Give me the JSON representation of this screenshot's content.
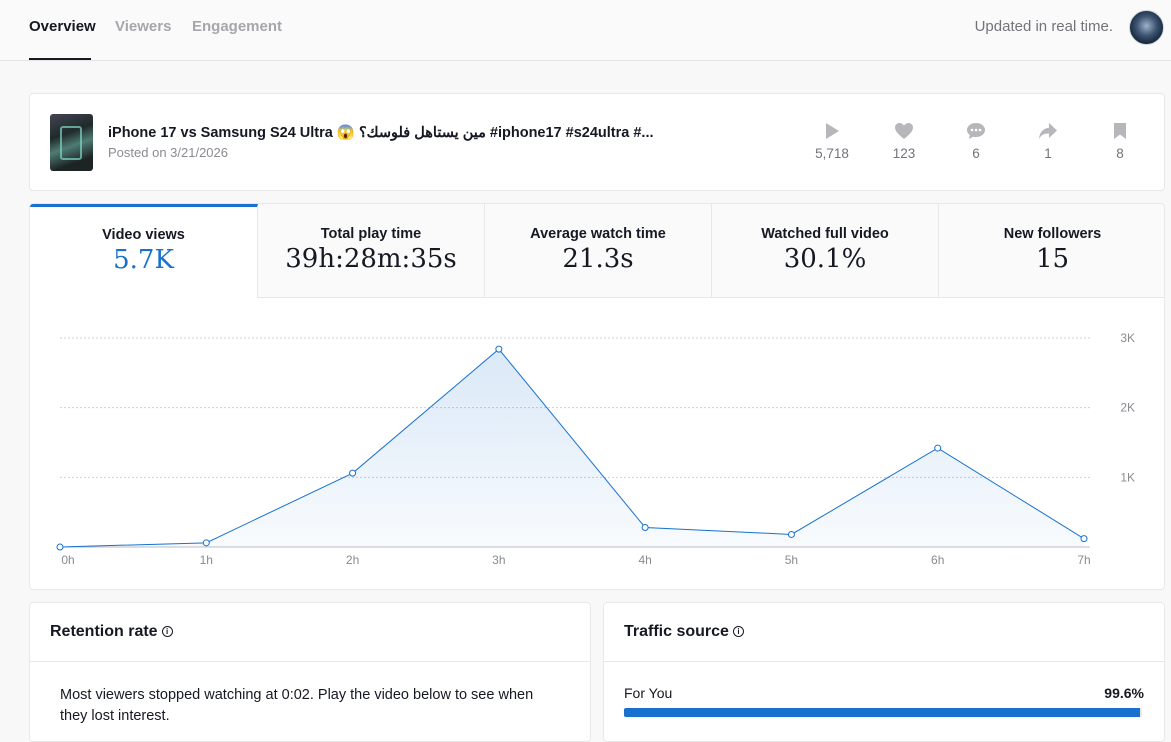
{
  "nav": {
    "tabs": [
      {
        "label": "Overview",
        "active": true
      },
      {
        "label": "Viewers",
        "active": false
      },
      {
        "label": "Engagement",
        "active": false
      }
    ],
    "status": "Updated in real time."
  },
  "video": {
    "title": "iPhone 17 vs Samsung S24 Ultra 😱 مين يستاهل فلوسك؟ #iphone17 #s24ultra #...",
    "posted": "Posted on 3/21/2026",
    "stats": [
      {
        "icon": "play-icon",
        "value": "5,718"
      },
      {
        "icon": "heart-icon",
        "value": "123"
      },
      {
        "icon": "comment-icon",
        "value": "6"
      },
      {
        "icon": "share-icon",
        "value": "1"
      },
      {
        "icon": "bookmark-icon",
        "value": "8"
      }
    ]
  },
  "metrics": [
    {
      "label": "Video views",
      "value": "5.7K",
      "active": true
    },
    {
      "label": "Total play time",
      "value": "39h:28m:35s",
      "active": false
    },
    {
      "label": "Average watch time",
      "value": "21.3s",
      "active": false
    },
    {
      "label": "Watched full video",
      "value": "30.1%",
      "active": false
    },
    {
      "label": "New followers",
      "value": "15",
      "active": false
    }
  ],
  "chart_data": {
    "type": "area",
    "categories": [
      "0h",
      "1h",
      "2h",
      "3h",
      "4h",
      "5h",
      "6h",
      "7h"
    ],
    "values": [
      0,
      60,
      1060,
      2840,
      280,
      180,
      1420,
      120
    ],
    "y_ticks": [
      "1K",
      "2K",
      "3K"
    ],
    "y_tick_values": [
      1000,
      2000,
      3000
    ],
    "ylim": [
      0,
      3000
    ],
    "grid": true,
    "color": "#1871cf"
  },
  "retention": {
    "title": "Retention rate",
    "text": "Most viewers stopped watching at 0:02. Play the video below to see when they lost interest."
  },
  "traffic": {
    "title": "Traffic source",
    "items": [
      {
        "label": "For You",
        "percent": "99.6%",
        "fraction": 0.996
      }
    ]
  },
  "colors": {
    "accent": "#1871cf"
  }
}
